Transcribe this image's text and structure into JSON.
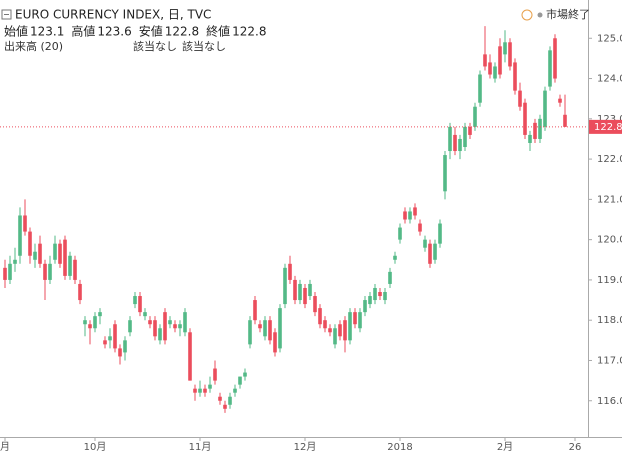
{
  "chart_data": {
    "type": "candlestick",
    "title": "EURO CURRENCY INDEX, 日, TVC",
    "ohlc_labels": [
      "始値",
      "高値",
      "安値",
      "終値"
    ],
    "volume_label": "出来高 (20)",
    "volume_values": [
      "該当なし",
      "該当なし"
    ],
    "status": "市場終了",
    "up_color": "#53b987",
    "down_color": "#eb4d5c",
    "xlim": [
      -1,
      116.6
    ],
    "xticks": [
      {
        "value": 0,
        "label": "月"
      },
      {
        "value": 18,
        "label": "10月"
      },
      {
        "value": 39,
        "label": "11月"
      },
      {
        "value": 60,
        "label": "12月"
      },
      {
        "value": 79,
        "label": "2018"
      },
      {
        "value": 100,
        "label": "2月"
      },
      {
        "value": 114,
        "label": "26"
      }
    ],
    "ylim": [
      115.1,
      125.95
    ],
    "yticks": [
      {
        "value": 116,
        "label": "116.0"
      },
      {
        "value": 117,
        "label": "117.0"
      },
      {
        "value": 118,
        "label": "118.0"
      },
      {
        "value": 119,
        "label": "119.0"
      },
      {
        "value": 120,
        "label": "120.0"
      },
      {
        "value": 121,
        "label": "121.0"
      },
      {
        "value": 122,
        "label": "122.0"
      },
      {
        "value": 123,
        "label": "123.0"
      },
      {
        "value": 124,
        "label": "124.0"
      },
      {
        "value": 125,
        "label": "125.0"
      }
    ],
    "candles": [
      {
        "o": 119.3,
        "h": 119.5,
        "l": 118.8,
        "c": 119.0
      },
      {
        "o": 119.0,
        "h": 119.6,
        "l": 118.9,
        "c": 119.4
      },
      {
        "o": 119.4,
        "h": 119.8,
        "l": 119.2,
        "c": 119.5
      },
      {
        "o": 119.6,
        "h": 120.8,
        "l": 119.4,
        "c": 120.6
      },
      {
        "o": 120.6,
        "h": 121.0,
        "l": 120.1,
        "c": 120.2
      },
      {
        "o": 120.2,
        "h": 120.3,
        "l": 119.4,
        "c": 119.6
      },
      {
        "o": 119.5,
        "h": 119.9,
        "l": 119.3,
        "c": 119.7
      },
      {
        "o": 119.9,
        "h": 120.1,
        "l": 119.3,
        "c": 119.4
      },
      {
        "o": 119.4,
        "h": 119.5,
        "l": 118.5,
        "c": 119.0
      },
      {
        "o": 119.0,
        "h": 119.6,
        "l": 118.9,
        "c": 119.4
      },
      {
        "o": 119.5,
        "h": 120.1,
        "l": 119.4,
        "c": 119.9
      },
      {
        "o": 119.9,
        "h": 120.0,
        "l": 119.3,
        "c": 119.4
      },
      {
        "o": 120.0,
        "h": 120.1,
        "l": 119.0,
        "c": 119.1
      },
      {
        "o": 119.1,
        "h": 119.7,
        "l": 119.0,
        "c": 119.6
      },
      {
        "o": 119.5,
        "h": 119.6,
        "l": 118.9,
        "c": 119.0
      },
      {
        "o": 118.9,
        "h": 119.0,
        "l": 118.4,
        "c": 118.5
      },
      {
        "o": 117.9,
        "h": 118.1,
        "l": 117.6,
        "c": 118.0
      },
      {
        "o": 117.9,
        "h": 118.0,
        "l": 117.4,
        "c": 117.8
      },
      {
        "o": 117.8,
        "h": 118.2,
        "l": 117.7,
        "c": 118.1
      },
      {
        "o": 118.1,
        "h": 118.3,
        "l": 117.9,
        "c": 118.2
      },
      {
        "o": 117.5,
        "h": 117.6,
        "l": 117.3,
        "c": 117.4
      },
      {
        "o": 117.5,
        "h": 117.8,
        "l": 117.3,
        "c": 117.6
      },
      {
        "o": 117.9,
        "h": 118.0,
        "l": 117.2,
        "c": 117.3
      },
      {
        "o": 117.3,
        "h": 117.4,
        "l": 116.9,
        "c": 117.1
      },
      {
        "o": 117.2,
        "h": 117.6,
        "l": 117.0,
        "c": 117.5
      },
      {
        "o": 117.7,
        "h": 118.1,
        "l": 117.6,
        "c": 118.0
      },
      {
        "o": 118.4,
        "h": 118.7,
        "l": 118.3,
        "c": 118.6
      },
      {
        "o": 118.6,
        "h": 118.7,
        "l": 118.1,
        "c": 118.2
      },
      {
        "o": 118.1,
        "h": 118.3,
        "l": 118.0,
        "c": 118.2
      },
      {
        "o": 118.0,
        "h": 118.1,
        "l": 117.8,
        "c": 117.9
      },
      {
        "o": 118.0,
        "h": 118.1,
        "l": 117.5,
        "c": 117.6
      },
      {
        "o": 117.5,
        "h": 117.9,
        "l": 117.4,
        "c": 117.8
      },
      {
        "o": 118.2,
        "h": 118.3,
        "l": 117.4,
        "c": 117.5
      },
      {
        "o": 117.9,
        "h": 118.1,
        "l": 117.8,
        "c": 118.0
      },
      {
        "o": 117.9,
        "h": 118.0,
        "l": 117.7,
        "c": 117.8
      },
      {
        "o": 117.8,
        "h": 118.0,
        "l": 117.6,
        "c": 117.9
      },
      {
        "o": 117.7,
        "h": 118.3,
        "l": 117.6,
        "c": 118.2
      },
      {
        "o": 117.7,
        "h": 117.8,
        "l": 116.5,
        "c": 116.5
      },
      {
        "o": 116.3,
        "h": 116.4,
        "l": 116.0,
        "c": 116.2
      },
      {
        "o": 116.2,
        "h": 116.5,
        "l": 116.1,
        "c": 116.3
      },
      {
        "o": 116.3,
        "h": 116.4,
        "l": 116.1,
        "c": 116.2
      },
      {
        "o": 116.3,
        "h": 116.6,
        "l": 116.2,
        "c": 116.4
      },
      {
        "o": 116.8,
        "h": 117.0,
        "l": 116.4,
        "c": 116.5
      },
      {
        "o": 116.1,
        "h": 116.2,
        "l": 115.9,
        "c": 116.0
      },
      {
        "o": 115.9,
        "h": 116.0,
        "l": 115.7,
        "c": 115.8
      },
      {
        "o": 115.9,
        "h": 116.2,
        "l": 115.8,
        "c": 116.1
      },
      {
        "o": 116.2,
        "h": 116.4,
        "l": 116.1,
        "c": 116.3
      },
      {
        "o": 116.4,
        "h": 116.6,
        "l": 116.3,
        "c": 116.6
      },
      {
        "o": 116.6,
        "h": 116.8,
        "l": 116.5,
        "c": 116.7
      },
      {
        "o": 117.4,
        "h": 118.1,
        "l": 117.3,
        "c": 118.0
      },
      {
        "o": 118.5,
        "h": 118.6,
        "l": 117.9,
        "c": 118.0
      },
      {
        "o": 117.9,
        "h": 118.0,
        "l": 117.7,
        "c": 117.8
      },
      {
        "o": 117.6,
        "h": 118.1,
        "l": 117.5,
        "c": 118.0
      },
      {
        "o": 118.0,
        "h": 118.1,
        "l": 117.4,
        "c": 117.5
      },
      {
        "o": 117.7,
        "h": 117.8,
        "l": 117.1,
        "c": 117.2
      },
      {
        "o": 117.3,
        "h": 118.4,
        "l": 117.2,
        "c": 118.3
      },
      {
        "o": 118.4,
        "h": 119.4,
        "l": 118.3,
        "c": 119.3
      },
      {
        "o": 119.4,
        "h": 119.6,
        "l": 118.9,
        "c": 119.0
      },
      {
        "o": 119.0,
        "h": 119.1,
        "l": 118.4,
        "c": 118.5
      },
      {
        "o": 118.5,
        "h": 119.0,
        "l": 118.4,
        "c": 118.9
      },
      {
        "o": 118.8,
        "h": 118.9,
        "l": 118.3,
        "c": 118.4
      },
      {
        "o": 118.6,
        "h": 119.0,
        "l": 118.5,
        "c": 118.9
      },
      {
        "o": 118.6,
        "h": 118.7,
        "l": 118.1,
        "c": 118.2
      },
      {
        "o": 118.3,
        "h": 118.4,
        "l": 117.8,
        "c": 117.9
      },
      {
        "o": 118.0,
        "h": 118.1,
        "l": 117.7,
        "c": 117.8
      },
      {
        "o": 117.8,
        "h": 117.9,
        "l": 117.6,
        "c": 117.7
      },
      {
        "o": 117.4,
        "h": 117.9,
        "l": 117.3,
        "c": 117.8
      },
      {
        "o": 117.9,
        "h": 118.0,
        "l": 117.5,
        "c": 117.6
      },
      {
        "o": 118.0,
        "h": 118.1,
        "l": 117.2,
        "c": 117.5
      },
      {
        "o": 117.5,
        "h": 118.3,
        "l": 117.4,
        "c": 118.2
      },
      {
        "o": 118.2,
        "h": 118.3,
        "l": 117.8,
        "c": 117.9
      },
      {
        "o": 117.8,
        "h": 118.3,
        "l": 117.7,
        "c": 118.2
      },
      {
        "o": 118.2,
        "h": 118.6,
        "l": 118.1,
        "c": 118.5
      },
      {
        "o": 118.4,
        "h": 118.7,
        "l": 118.3,
        "c": 118.6
      },
      {
        "o": 118.5,
        "h": 118.9,
        "l": 118.4,
        "c": 118.8
      },
      {
        "o": 118.7,
        "h": 118.8,
        "l": 118.5,
        "c": 118.6
      },
      {
        "o": 118.5,
        "h": 118.8,
        "l": 118.4,
        "c": 118.7
      },
      {
        "o": 118.9,
        "h": 119.3,
        "l": 118.8,
        "c": 119.2
      },
      {
        "o": 119.5,
        "h": 119.7,
        "l": 119.4,
        "c": 119.6
      },
      {
        "o": 120.0,
        "h": 120.4,
        "l": 119.9,
        "c": 120.3
      },
      {
        "o": 120.7,
        "h": 120.8,
        "l": 120.4,
        "c": 120.5
      },
      {
        "o": 120.5,
        "h": 120.8,
        "l": 120.4,
        "c": 120.7
      },
      {
        "o": 120.8,
        "h": 120.9,
        "l": 120.5,
        "c": 120.6
      },
      {
        "o": 120.4,
        "h": 120.5,
        "l": 120.1,
        "c": 120.2
      },
      {
        "o": 119.8,
        "h": 120.1,
        "l": 119.7,
        "c": 120.0
      },
      {
        "o": 119.9,
        "h": 120.0,
        "l": 119.3,
        "c": 119.4
      },
      {
        "o": 119.5,
        "h": 120.0,
        "l": 119.4,
        "c": 119.9
      },
      {
        "o": 119.9,
        "h": 120.5,
        "l": 119.8,
        "c": 120.4
      },
      {
        "o": 121.2,
        "h": 122.2,
        "l": 121.0,
        "c": 122.1
      },
      {
        "o": 122.2,
        "h": 122.9,
        "l": 122.0,
        "c": 122.8
      },
      {
        "o": 122.6,
        "h": 122.8,
        "l": 122.1,
        "c": 122.2
      },
      {
        "o": 122.2,
        "h": 122.6,
        "l": 122.0,
        "c": 122.5
      },
      {
        "o": 122.3,
        "h": 122.9,
        "l": 122.2,
        "c": 122.8
      },
      {
        "o": 122.8,
        "h": 122.9,
        "l": 122.5,
        "c": 122.6
      },
      {
        "o": 122.8,
        "h": 123.4,
        "l": 122.7,
        "c": 123.3
      },
      {
        "o": 123.4,
        "h": 124.2,
        "l": 123.3,
        "c": 124.1
      },
      {
        "o": 124.6,
        "h": 125.3,
        "l": 124.2,
        "c": 124.3
      },
      {
        "o": 124.4,
        "h": 124.6,
        "l": 124.0,
        "c": 124.1
      },
      {
        "o": 124.0,
        "h": 124.4,
        "l": 123.9,
        "c": 124.3
      },
      {
        "o": 124.8,
        "h": 125.0,
        "l": 124.0,
        "c": 124.1
      },
      {
        "o": 124.6,
        "h": 125.2,
        "l": 124.4,
        "c": 124.9
      },
      {
        "o": 124.9,
        "h": 125.0,
        "l": 124.2,
        "c": 124.3
      },
      {
        "o": 124.4,
        "h": 124.5,
        "l": 123.6,
        "c": 123.7
      },
      {
        "o": 123.7,
        "h": 123.9,
        "l": 123.2,
        "c": 123.3
      },
      {
        "o": 123.4,
        "h": 123.5,
        "l": 122.5,
        "c": 122.6
      },
      {
        "o": 122.4,
        "h": 122.7,
        "l": 122.2,
        "c": 122.6
      },
      {
        "o": 122.9,
        "h": 123.0,
        "l": 122.4,
        "c": 122.5
      },
      {
        "o": 122.5,
        "h": 123.1,
        "l": 122.4,
        "c": 123.0
      },
      {
        "o": 122.8,
        "h": 123.8,
        "l": 122.7,
        "c": 123.7
      },
      {
        "o": 123.8,
        "h": 124.8,
        "l": 123.7,
        "c": 124.7
      },
      {
        "o": 125.0,
        "h": 125.1,
        "l": 123.9,
        "c": 124.0
      },
      {
        "o": 123.5,
        "h": 123.6,
        "l": 123.3,
        "c": 123.4
      },
      {
        "o": 123.1,
        "h": 123.6,
        "l": 122.8,
        "c": 122.8
      }
    ]
  }
}
